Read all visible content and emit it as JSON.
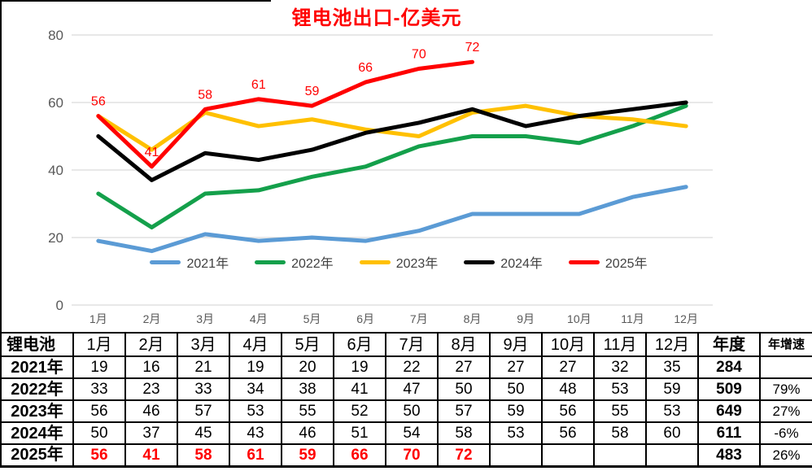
{
  "chart_data": {
    "type": "line",
    "title": "锂电池出口-亿美元",
    "title_color": "#FF0000",
    "categories": [
      "1月",
      "2月",
      "3月",
      "4月",
      "5月",
      "6月",
      "7月",
      "8月",
      "9月",
      "10月",
      "11月",
      "12月"
    ],
    "xlabel": "",
    "ylabel": "",
    "ylim": [
      0,
      80
    ],
    "y_ticks": [
      0,
      20,
      40,
      60,
      80
    ],
    "grid": true,
    "gridline_color": "#D9D9D9",
    "axis_label_color": "#595959",
    "legend_position": "bottom",
    "series": [
      {
        "name": "2021年",
        "color": "#5B9BD5",
        "values": [
          19,
          16,
          21,
          19,
          20,
          19,
          22,
          27,
          27,
          27,
          32,
          35
        ],
        "data_labels": false
      },
      {
        "name": "2022年",
        "color": "#14A04B",
        "values": [
          33,
          23,
          33,
          34,
          38,
          41,
          47,
          50,
          50,
          48,
          53,
          59
        ],
        "data_labels": false
      },
      {
        "name": "2023年",
        "color": "#FFC000",
        "values": [
          56,
          46,
          57,
          53,
          55,
          52,
          50,
          57,
          59,
          56,
          55,
          53
        ],
        "data_labels": false
      },
      {
        "name": "2024年",
        "color": "#000000",
        "values": [
          50,
          37,
          45,
          43,
          46,
          51,
          54,
          58,
          53,
          56,
          58,
          60
        ],
        "data_labels": false
      },
      {
        "name": "2025年",
        "color": "#FF0000",
        "values": [
          56,
          41,
          58,
          61,
          59,
          66,
          70,
          72
        ],
        "data_labels": true,
        "label_color": "#FF0000"
      }
    ]
  },
  "table": {
    "header": [
      "锂电池",
      "1月",
      "2月",
      "3月",
      "4月",
      "5月",
      "6月",
      "7月",
      "8月",
      "9月",
      "10月",
      "11月",
      "12月",
      "年度",
      "年增速"
    ],
    "rows": [
      {
        "label": "2021年",
        "values": [
          "19",
          "16",
          "21",
          "19",
          "20",
          "19",
          "22",
          "27",
          "27",
          "27",
          "32",
          "35"
        ],
        "annual": "284",
        "growth": "",
        "highlight": false
      },
      {
        "label": "2022年",
        "values": [
          "33",
          "23",
          "33",
          "34",
          "38",
          "41",
          "47",
          "50",
          "50",
          "48",
          "53",
          "59"
        ],
        "annual": "509",
        "growth": "79%",
        "highlight": false
      },
      {
        "label": "2023年",
        "values": [
          "56",
          "46",
          "57",
          "53",
          "55",
          "52",
          "50",
          "57",
          "59",
          "56",
          "55",
          "53"
        ],
        "annual": "649",
        "growth": "27%",
        "highlight": false
      },
      {
        "label": "2024年",
        "values": [
          "50",
          "37",
          "45",
          "43",
          "46",
          "51",
          "54",
          "58",
          "53",
          "56",
          "58",
          "60"
        ],
        "annual": "611",
        "growth": "-6%",
        "highlight": false
      },
      {
        "label": "2025年",
        "values": [
          "56",
          "41",
          "58",
          "61",
          "59",
          "66",
          "70",
          "72",
          "",
          "",
          "",
          ""
        ],
        "annual": "483",
        "growth": "26%",
        "highlight": true
      }
    ]
  }
}
